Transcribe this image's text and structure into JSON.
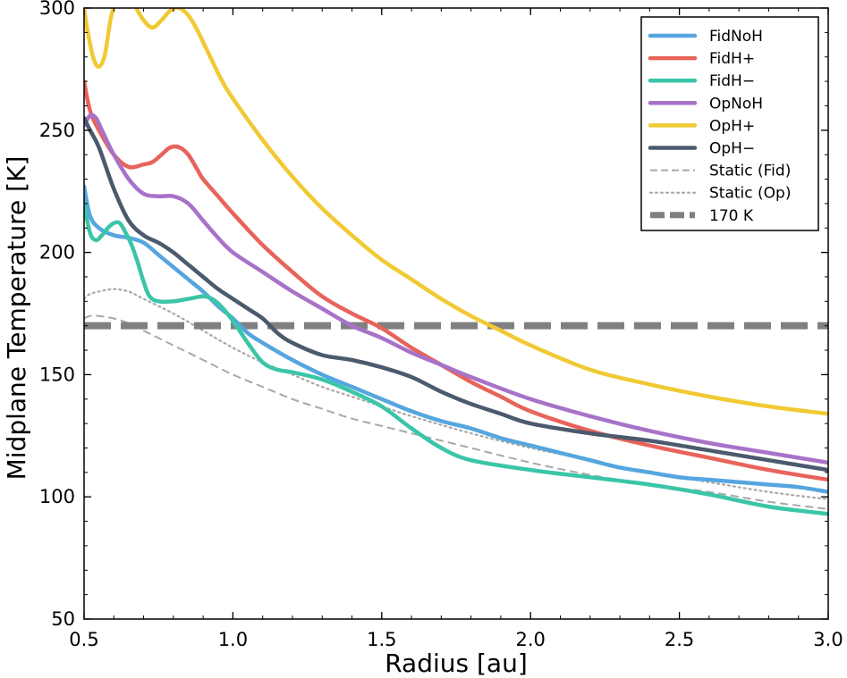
{
  "chart_data": {
    "type": "line",
    "title": "",
    "xlabel": "Radius [au]",
    "ylabel": "Midplane Temperature [K]",
    "xlim": [
      0.5,
      3.0
    ],
    "ylim": [
      50,
      300
    ],
    "xticks": [
      0.5,
      1.0,
      1.5,
      2.0,
      2.5,
      3.0
    ],
    "xtick_labels": [
      "0.5",
      "1.0",
      "1.5",
      "2.0",
      "2.5",
      "3.0"
    ],
    "yticks": [
      50,
      100,
      150,
      200,
      250,
      300
    ],
    "ytick_labels": [
      "50",
      "100",
      "150",
      "200",
      "250",
      "300"
    ],
    "grid": false,
    "legend_position": "top-right",
    "series": [
      {
        "name": "FidNoH",
        "color": "#55a6df",
        "style": "solid",
        "x": [
          0.5,
          0.52,
          0.55,
          0.6,
          0.65,
          0.7,
          0.75,
          0.8,
          0.85,
          0.9,
          0.95,
          1.0,
          1.05,
          1.1,
          1.2,
          1.3,
          1.4,
          1.5,
          1.6,
          1.7,
          1.8,
          1.9,
          2.0,
          2.1,
          2.2,
          2.3,
          2.4,
          2.5,
          2.6,
          2.7,
          2.8,
          2.9,
          3.0
        ],
        "y": [
          227,
          215,
          210,
          207,
          206,
          204,
          199,
          194,
          189,
          184,
          178,
          173,
          167,
          163,
          156,
          150,
          145,
          140,
          135,
          131,
          128,
          124,
          121,
          118,
          115,
          112,
          110,
          108,
          107,
          106,
          105,
          104,
          102
        ]
      },
      {
        "name": "FidH+",
        "color": "#e8635a",
        "style": "solid",
        "x": [
          0.5,
          0.52,
          0.55,
          0.6,
          0.65,
          0.7,
          0.73,
          0.76,
          0.79,
          0.82,
          0.85,
          0.88,
          0.9,
          0.95,
          1.0,
          1.1,
          1.2,
          1.3,
          1.4,
          1.5,
          1.6,
          1.7,
          1.8,
          1.9,
          2.0,
          2.2,
          2.4,
          2.6,
          2.8,
          3.0
        ],
        "y": [
          270,
          258,
          250,
          240,
          235,
          236,
          237,
          240,
          243,
          243,
          240,
          234,
          230,
          223,
          216,
          203,
          192,
          182,
          175,
          169,
          161,
          154,
          147,
          141,
          135,
          127,
          121,
          116,
          111,
          107
        ]
      },
      {
        "name": "FidH−",
        "color": "#3bc5a8",
        "style": "solid",
        "x": [
          0.5,
          0.52,
          0.54,
          0.56,
          0.58,
          0.6,
          0.62,
          0.64,
          0.66,
          0.68,
          0.7,
          0.72,
          0.75,
          0.8,
          0.85,
          0.9,
          0.93,
          0.96,
          1.0,
          1.05,
          1.1,
          1.15,
          1.2,
          1.3,
          1.4,
          1.5,
          1.6,
          1.7,
          1.8,
          2.0,
          2.2,
          2.4,
          2.6,
          2.8,
          3.0
        ],
        "y": [
          220,
          208,
          205,
          207,
          210,
          212,
          212,
          208,
          203,
          196,
          188,
          182,
          180,
          180,
          181,
          182,
          181,
          178,
          172,
          163,
          155,
          152,
          151,
          148,
          143,
          137,
          128,
          120,
          115,
          111,
          108,
          105,
          101,
          96,
          93
        ]
      },
      {
        "name": "OpNoH",
        "color": "#a872c8",
        "style": "solid",
        "x": [
          0.5,
          0.52,
          0.54,
          0.56,
          0.6,
          0.65,
          0.7,
          0.75,
          0.8,
          0.85,
          0.9,
          0.95,
          1.0,
          1.1,
          1.2,
          1.3,
          1.4,
          1.5,
          1.6,
          1.7,
          1.8,
          2.0,
          2.2,
          2.4,
          2.6,
          2.8,
          3.0
        ],
        "y": [
          252,
          256,
          255,
          250,
          240,
          230,
          224,
          223,
          223,
          220,
          213,
          206,
          200,
          192,
          184,
          177,
          170,
          165,
          159,
          154,
          149,
          140,
          133,
          127,
          122,
          118,
          114
        ]
      },
      {
        "name": "OpH+",
        "color": "#f1c933",
        "style": "solid",
        "x": [
          0.5,
          0.51,
          0.53,
          0.55,
          0.57,
          0.59,
          0.61,
          0.63,
          0.65,
          0.67,
          0.7,
          0.73,
          0.76,
          0.79,
          0.82,
          0.85,
          0.88,
          0.92,
          0.96,
          1.0,
          1.1,
          1.2,
          1.3,
          1.4,
          1.5,
          1.6,
          1.7,
          1.8,
          1.9,
          2.0,
          2.2,
          2.4,
          2.6,
          2.8,
          3.0
        ],
        "y": [
          300,
          292,
          280,
          276,
          281,
          296,
          303,
          305,
          304,
          301,
          295,
          292,
          295,
          299,
          300,
          297,
          291,
          281,
          271,
          263,
          246,
          231,
          218,
          207,
          197,
          189,
          181,
          174,
          168,
          162,
          152,
          146,
          141,
          137,
          134
        ]
      },
      {
        "name": "OpH−",
        "color": "#4b5a6d",
        "style": "solid",
        "x": [
          0.5,
          0.52,
          0.55,
          0.6,
          0.65,
          0.7,
          0.75,
          0.8,
          0.85,
          0.9,
          0.95,
          1.0,
          1.05,
          1.1,
          1.15,
          1.2,
          1.3,
          1.4,
          1.5,
          1.6,
          1.7,
          1.8,
          1.9,
          2.0,
          2.2,
          2.4,
          2.6,
          2.8,
          3.0
        ],
        "y": [
          255,
          250,
          243,
          226,
          213,
          207,
          204,
          200,
          195,
          190,
          185,
          181,
          177,
          173,
          167,
          163,
          158,
          156,
          153,
          149,
          143,
          138,
          134,
          130,
          126,
          123,
          119,
          115,
          111
        ]
      },
      {
        "name": "Static (Fid)",
        "color": "#a8a8a8",
        "style": "dashed",
        "x": [
          0.5,
          0.52,
          0.55,
          0.6,
          0.65,
          0.7,
          0.8,
          0.9,
          1.0,
          1.1,
          1.2,
          1.3,
          1.4,
          1.5,
          1.6,
          1.8,
          2.0,
          2.2,
          2.4,
          2.6,
          2.8,
          3.0
        ],
        "y": [
          173,
          174,
          174,
          173,
          171,
          168,
          162,
          156,
          150,
          145,
          140,
          136,
          132,
          129,
          126,
          120,
          114,
          109,
          105,
          102,
          98,
          95
        ]
      },
      {
        "name": "Static (Op)",
        "color": "#a8a8a8",
        "style": "dotted",
        "x": [
          0.5,
          0.52,
          0.55,
          0.6,
          0.65,
          0.7,
          0.8,
          0.9,
          1.0,
          1.1,
          1.2,
          1.3,
          1.4,
          1.5,
          1.6,
          1.8,
          2.0,
          2.2,
          2.4,
          2.6,
          2.8,
          3.0
        ],
        "y": [
          181,
          183,
          184,
          185,
          184,
          181,
          175,
          168,
          161,
          155,
          150,
          145,
          141,
          137,
          133,
          126,
          120,
          115,
          110,
          106,
          102,
          99
        ]
      },
      {
        "name": "170 K",
        "color": "#808080",
        "style": "thick-dashed",
        "x": [
          0.5,
          3.0
        ],
        "y": [
          170,
          170
        ]
      }
    ]
  }
}
